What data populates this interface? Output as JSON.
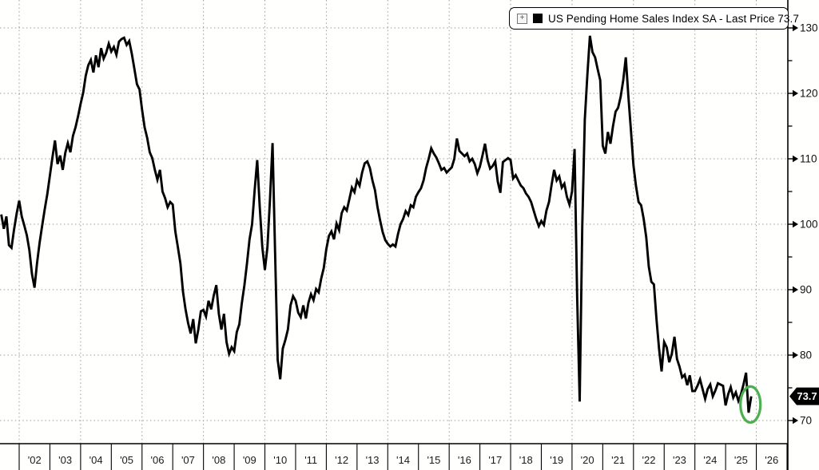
{
  "legend": {
    "expand_icon": "+",
    "series_marker_color": "#000000",
    "label": "US Pending Home Sales Index SA - Last Price 73.7"
  },
  "last_price": {
    "value": "73.7",
    "badge_bg": "#000000",
    "badge_text_color": "#ffffff"
  },
  "annotation": {
    "shape": "ellipse",
    "color": "#4CAF50",
    "meaning": "highlight of latest data point"
  },
  "y_axis": {
    "side": "right",
    "major_ticks": [
      130,
      120,
      110,
      100,
      90,
      80,
      70
    ],
    "minor_ticks": [
      125,
      115,
      105,
      95,
      85,
      75
    ]
  },
  "x_axis": {
    "year_labels": [
      "'02",
      "'03",
      "'04",
      "'05",
      "'06",
      "'07",
      "'08",
      "'09",
      "'10",
      "'11",
      "'12",
      "'13",
      "'14",
      "'15",
      "'16",
      "'17",
      "'18",
      "'19",
      "'20",
      "'21",
      "'22",
      "'23",
      "'24",
      "'25",
      "'26"
    ]
  },
  "chart_data": {
    "type": "line",
    "title": "US Pending Home Sales Index SA",
    "legend_position": "top-right",
    "grid": "dotted",
    "line_color": "#000000",
    "ylim": [
      67,
      134.3
    ],
    "yticks": [
      70,
      80,
      90,
      100,
      110,
      120,
      130
    ],
    "x_range": [
      "2001-06",
      "2025-11"
    ],
    "last_price": 73.7,
    "series": [
      {
        "name": "US Pending Home Sales Index SA",
        "start": "2001-06",
        "frequency": "monthly",
        "values": [
          101.5,
          99.3,
          101.2,
          96.8,
          96.4,
          99.2,
          101.6,
          103.6,
          101.2,
          99.8,
          98.3,
          96.0,
          92.4,
          90.3,
          94.1,
          97.2,
          99.8,
          102.3,
          104.6,
          107.4,
          110.2,
          112.8,
          109.2,
          110.5,
          108.3,
          110.9,
          112.4,
          111.0,
          113.5,
          114.8,
          116.5,
          118.4,
          120.1,
          122.7,
          124.3,
          125.1,
          123.2,
          125.8,
          124.0,
          126.9,
          125.3,
          126.2,
          127.6,
          126.4,
          127.1,
          125.9,
          127.9,
          128.3,
          128.5,
          127.4,
          128.0,
          126.1,
          123.8,
          121.4,
          120.6,
          117.5,
          114.8,
          113.2,
          111.0,
          110.1,
          108.3,
          106.8,
          108.3,
          105.0,
          104.0,
          102.6,
          103.4,
          103.0,
          98.9,
          96.5,
          94.0,
          89.7,
          87.0,
          84.9,
          83.3,
          85.5,
          81.8,
          83.9,
          86.7,
          86.9,
          85.9,
          88.3,
          87.0,
          89.1,
          90.7,
          86.3,
          83.9,
          86.3,
          82.0,
          80.2,
          81.2,
          80.6,
          83.5,
          84.7,
          88.0,
          90.7,
          94.0,
          97.7,
          100.0,
          105.2,
          109.8,
          102.6,
          96.5,
          93.0,
          96.5,
          103.8,
          112.4,
          95.6,
          79.3,
          76.3,
          81.0,
          82.3,
          83.9,
          87.6,
          89.0,
          88.3,
          86.5,
          85.8,
          87.6,
          85.6,
          88.0,
          89.3,
          88.4,
          90.1,
          89.6,
          91.7,
          93.3,
          96.2,
          98.2,
          98.9,
          97.7,
          100.1,
          99.1,
          101.7,
          102.6,
          102.1,
          103.8,
          105.6,
          104.9,
          106.7,
          105.9,
          107.9,
          109.3,
          109.6,
          108.6,
          106.7,
          105.2,
          102.6,
          100.6,
          98.8,
          97.6,
          97.0,
          96.6,
          96.9,
          96.6,
          98.5,
          100.0,
          100.8,
          102.0,
          101.4,
          102.9,
          102.6,
          104.2,
          104.9,
          105.5,
          106.7,
          108.6,
          110.0,
          111.6,
          110.8,
          110.2,
          109.3,
          108.3,
          108.6,
          107.9,
          108.3,
          108.7,
          110.0,
          113.1,
          111.2,
          110.8,
          110.4,
          110.8,
          109.6,
          110.0,
          109.2,
          107.8,
          108.8,
          110.5,
          112.3,
          109.8,
          108.5,
          108.9,
          109.6,
          106.5,
          104.8,
          109.5,
          109.8,
          110.1,
          109.8,
          107.0,
          107.5,
          106.7,
          105.9,
          105.5,
          104.7,
          104.2,
          103.4,
          102.1,
          100.8,
          99.7,
          100.5,
          99.9,
          102.1,
          103.4,
          106.0,
          108.3,
          106.7,
          107.3,
          105.6,
          106.2,
          104.2,
          103.0,
          105.0,
          111.5,
          89.0,
          72.9,
          99.6,
          116.0,
          122.8,
          128.8,
          126.3,
          125.5,
          123.7,
          122.0,
          112.0,
          110.8,
          114.1,
          112.3,
          115.0,
          117.2,
          117.8,
          119.5,
          122.0,
          125.5,
          119.6,
          114.4,
          109.0,
          105.8,
          103.4,
          102.9,
          100.8,
          98.0,
          93.5,
          91.2,
          90.8,
          85.5,
          81.0,
          77.5,
          82.0,
          81.2,
          78.9,
          80.2,
          82.8,
          79.4,
          78.2,
          76.6,
          77.0,
          75.4,
          76.9,
          74.5,
          74.5,
          75.3,
          76.3,
          74.8,
          73.3,
          74.8,
          75.5,
          73.7,
          74.6,
          75.7,
          75.5,
          75.3,
          72.3,
          74.0,
          75.1,
          73.5,
          74.3,
          73.0,
          74.0,
          75.5,
          77.3,
          71.2,
          73.7
        ]
      }
    ]
  }
}
